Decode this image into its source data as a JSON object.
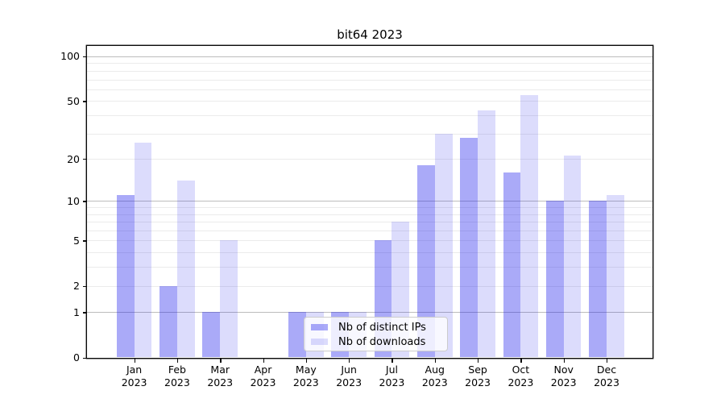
{
  "title": "bit64 2023",
  "chart_data": {
    "type": "bar",
    "title": "bit64 2023",
    "categories": [
      "Jan",
      "Feb",
      "Mar",
      "Apr",
      "May",
      "Jun",
      "Jul",
      "Aug",
      "Sep",
      "Oct",
      "Nov",
      "Dec"
    ],
    "category_year": "2023",
    "series": [
      {
        "name": "Nb of distinct IPs",
        "color": "rgba(20,20,235,0.36)",
        "values": [
          11,
          2,
          1,
          0,
          1,
          1,
          5,
          18,
          28,
          16,
          10,
          10
        ]
      },
      {
        "name": "Nb of downloads",
        "color": "rgba(20,20,235,0.15)",
        "values": [
          26,
          14,
          5,
          0,
          1,
          1,
          7,
          30,
          43,
          55,
          21,
          11
        ]
      }
    ],
    "xlabel": "",
    "ylabel": "",
    "y_axis": {
      "scale": "log10(value+1)",
      "tick_labels": [
        "100",
        "50",
        "20",
        "10",
        "5",
        "2",
        "1",
        "0"
      ],
      "tick_values": [
        100,
        50,
        20,
        10,
        5,
        2,
        1,
        0
      ],
      "major_grid_values": [
        100,
        10,
        1
      ],
      "minor_grid_values": [
        2,
        3,
        4,
        5,
        6,
        7,
        8,
        9,
        20,
        30,
        40,
        50,
        60,
        70,
        80,
        90
      ],
      "ylim": [
        0,
        117
      ],
      "grid": "on"
    },
    "legend": {
      "entries": [
        "Nb of distinct IPs",
        "Nb of downloads"
      ],
      "position": "lower center of plot"
    },
    "style": {
      "grid_major_color": "#bdbdbd",
      "grid_minor_color": "#ebebeb",
      "spine_color": "#0a0a0a",
      "background": "#ffffff"
    }
  }
}
